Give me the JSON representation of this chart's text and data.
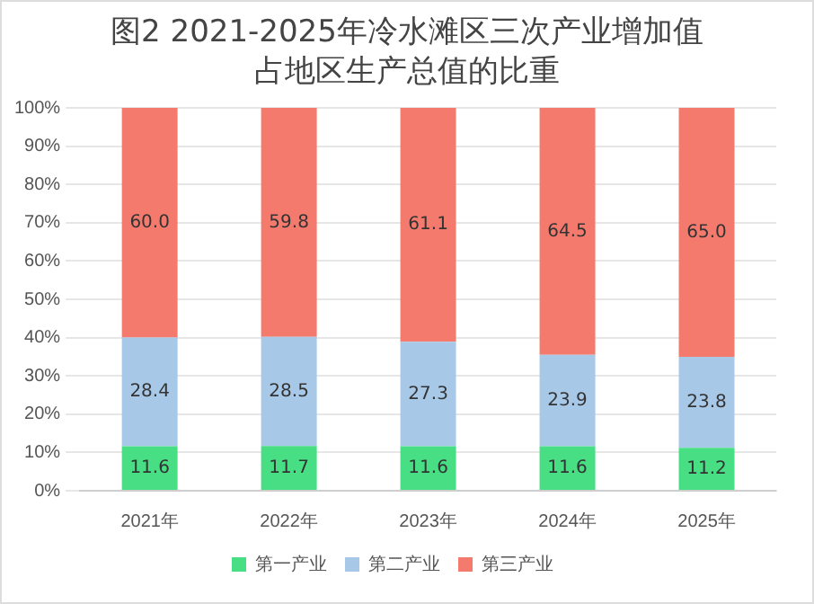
{
  "chart_data": {
    "type": "bar",
    "title": "图2 2021-2025年冷水滩区三次产业增加值占地区生产总值的比重",
    "categories": [
      "2021年",
      "2022年",
      "2023年",
      "2024年",
      "2025年"
    ],
    "series": [
      {
        "name": "第一产业",
        "color": "#47de84",
        "values": [
          11.6,
          11.7,
          11.6,
          11.6,
          11.2
        ],
        "value_labels": [
          "11.6",
          "11.7",
          "11.6",
          "11.6",
          "11.2"
        ]
      },
      {
        "name": "第二产业",
        "color": "#a8c8e8",
        "values": [
          28.4,
          28.5,
          27.3,
          23.9,
          23.8
        ],
        "value_labels": [
          "28.4",
          "28.5",
          "27.3",
          "23.9",
          "23.8"
        ]
      },
      {
        "name": "第三产业",
        "color": "#f47a6e",
        "values": [
          60.0,
          59.8,
          61.1,
          64.5,
          65.0
        ],
        "value_labels": [
          "60.0",
          "59.8",
          "61.1",
          "64.5",
          "65.0"
        ]
      }
    ],
    "stacked": true,
    "ylim": [
      0,
      100
    ],
    "yticks": [
      {
        "value": 0,
        "label": "0%"
      },
      {
        "value": 10,
        "label": "10%"
      },
      {
        "value": 20,
        "label": "20%"
      },
      {
        "value": 30,
        "label": "30%"
      },
      {
        "value": 40,
        "label": "40%"
      },
      {
        "value": 50,
        "label": "50%"
      },
      {
        "value": 60,
        "label": "60%"
      },
      {
        "value": 70,
        "label": "70%"
      },
      {
        "value": 80,
        "label": "80%"
      },
      {
        "value": 90,
        "label": "90%"
      },
      {
        "value": 100,
        "label": "100%"
      }
    ],
    "grid": "y",
    "legend": "bottom"
  }
}
